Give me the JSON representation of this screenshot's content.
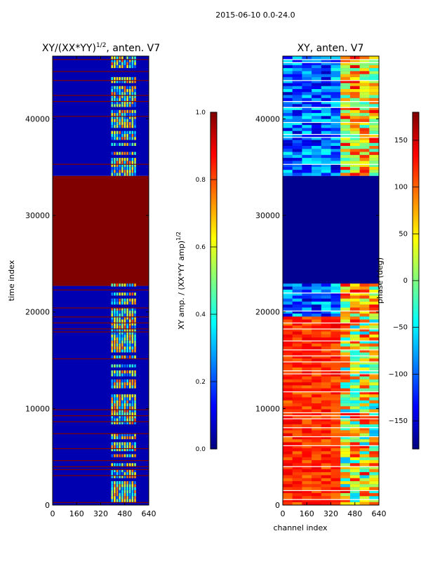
{
  "suptitle": "2015-06-10 0.0-24.0",
  "colors": {
    "jet": [
      "#00007f",
      "#0000ff",
      "#007fff",
      "#00ffff",
      "#7fff7f",
      "#ffff00",
      "#ff7f00",
      "#ff0000",
      "#7f0000"
    ],
    "dark_red": "#800000",
    "dark_blue": "#00008f",
    "axis": "#000000",
    "background": "#ffffff"
  },
  "chart_data": [
    {
      "type": "heatmap",
      "title_main": "XY/(XX*YY)",
      "title_exp": "1/2",
      "title_suffix": ", anten. V7",
      "xlabel": "",
      "ylabel": "time index",
      "xlim": [
        0,
        640
      ],
      "ylim": [
        0,
        46500
      ],
      "xticks": [
        "0",
        "160",
        "320",
        "480",
        "640"
      ],
      "yticks": [
        "0",
        "10000",
        "20000",
        "30000",
        "40000"
      ],
      "ytick_values": [
        0,
        10000,
        20000,
        30000,
        40000
      ],
      "xtick_values": [
        0,
        160,
        320,
        480,
        640
      ],
      "regions": [
        {
          "y0": 0,
          "y1": 22700,
          "level": "low",
          "value": 0.05
        },
        {
          "y0": 22700,
          "y1": 34100,
          "level": "saturated",
          "value": 1.0
        },
        {
          "y0": 34100,
          "y1": 46500,
          "level": "low",
          "value": 0.05
        }
      ],
      "colorbar": {
        "label_main": "XY amp. / (XX*YY amp)",
        "label_exp": "1/2",
        "ticks": [
          "0.0",
          "0.2",
          "0.4",
          "0.6",
          "0.8",
          "1.0"
        ],
        "tick_values": [
          0.0,
          0.2,
          0.4,
          0.6,
          0.8,
          1.0
        ],
        "range": [
          0.0,
          1.0
        ]
      }
    },
    {
      "type": "heatmap",
      "title": "XY, anten. V7",
      "xlabel": "channel index",
      "ylabel": "",
      "xlim": [
        0,
        640
      ],
      "ylim": [
        0,
        46500
      ],
      "xticks": [
        "0",
        "160",
        "320",
        "480",
        "640"
      ],
      "yticks": [
        "0",
        "10000",
        "20000",
        "30000",
        "40000"
      ],
      "ytick_values": [
        0,
        10000,
        20000,
        30000,
        40000
      ],
      "xtick_values": [
        0,
        160,
        320,
        480,
        640
      ],
      "regions": [
        {
          "y0": 0,
          "y1": 19500,
          "level": "phase-varying",
          "value": 120
        },
        {
          "y0": 19500,
          "y1": 22700,
          "level": "mixed",
          "value": 60
        },
        {
          "y0": 22700,
          "y1": 34100,
          "level": "constant",
          "value": -180
        },
        {
          "y0": 34100,
          "y1": 46500,
          "level": "mixed",
          "value": -90
        }
      ],
      "colorbar": {
        "label": "phase (deg)",
        "ticks": [
          "−150",
          "−100",
          "−50",
          "0",
          "50",
          "100",
          "150"
        ],
        "tick_values": [
          -150,
          -100,
          -50,
          0,
          50,
          100,
          150
        ],
        "range": [
          -180,
          180
        ]
      }
    }
  ]
}
